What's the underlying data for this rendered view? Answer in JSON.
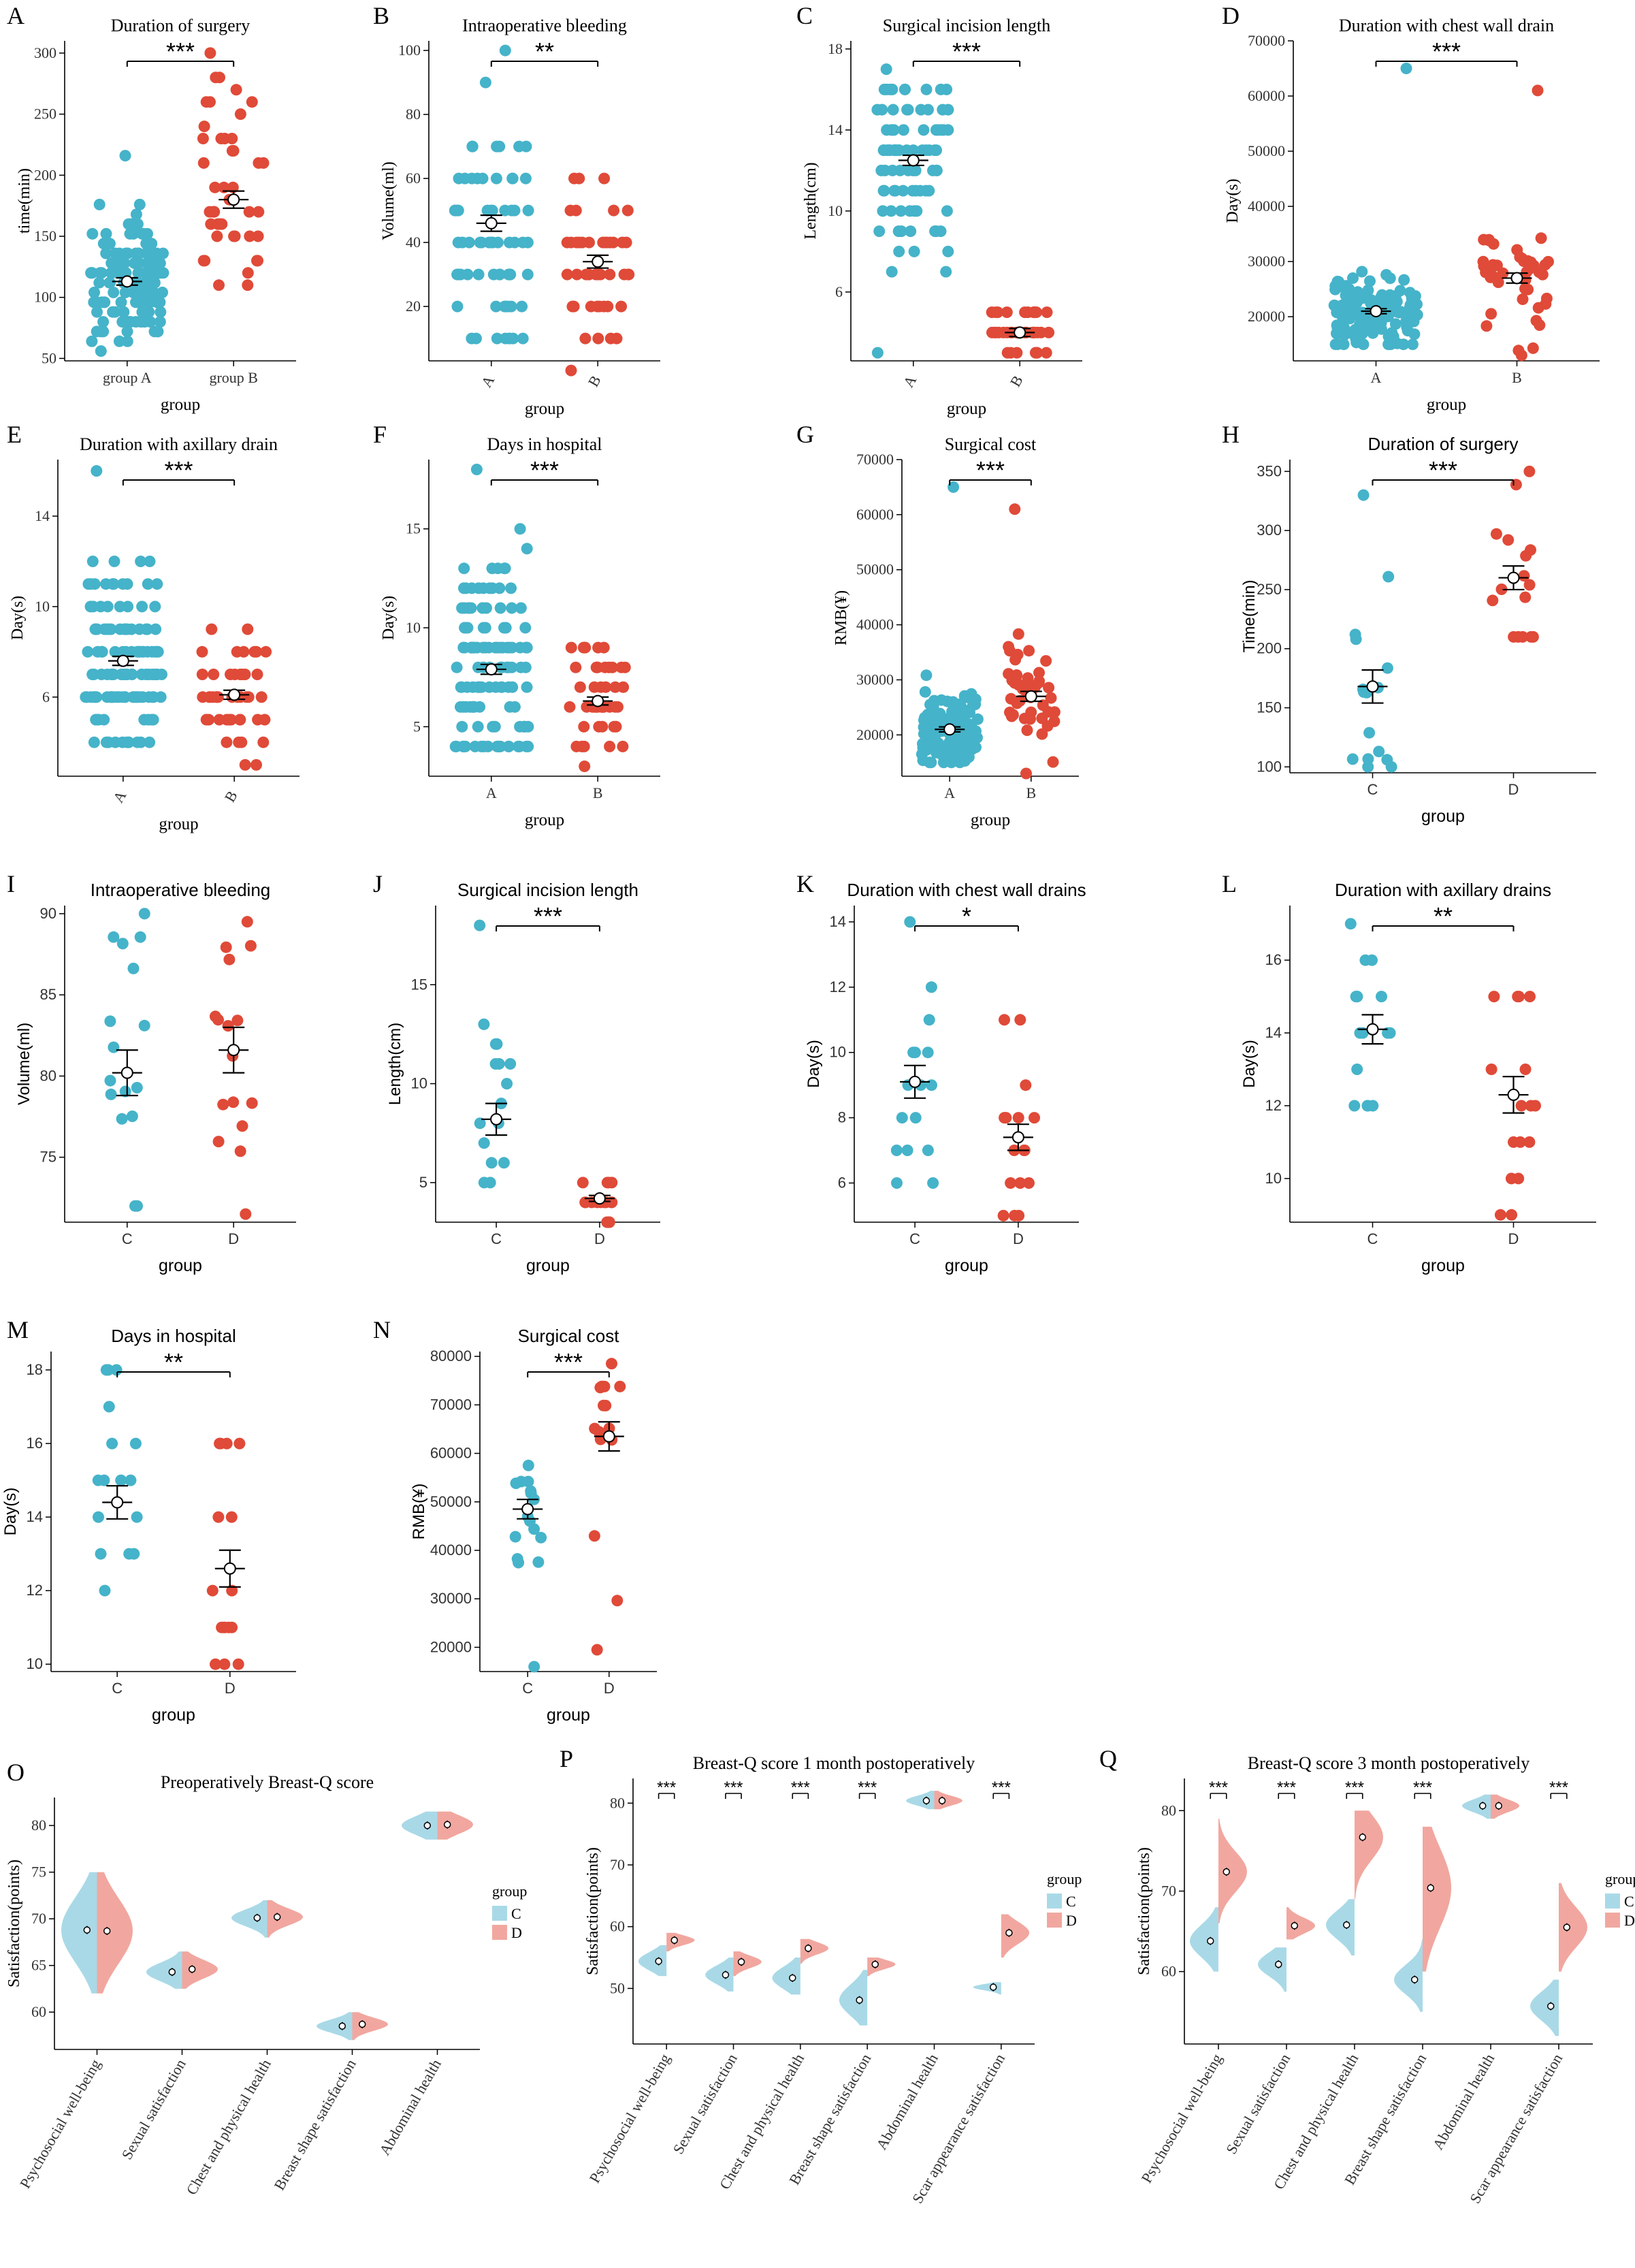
{
  "colors": {
    "a": "#45B3C9",
    "b": "#E04A38",
    "violinC": "#A9D9E7",
    "violinD": "#F1A79F"
  },
  "chart_data": [
    {
      "id": "A",
      "label": "A",
      "type": "scatter",
      "style": "serif",
      "title": "Duration of surgery",
      "xlabel": "group",
      "ylabel": "time(min)",
      "ylim": [
        48,
        310
      ],
      "yticks": [
        50,
        100,
        150,
        200,
        250,
        300
      ],
      "categories": [
        "group A",
        "group B"
      ],
      "rotate": false,
      "groups": [
        {
          "n": 130,
          "mean": 113,
          "sd": 30,
          "min": 52,
          "max": 215,
          "se": 3,
          "clump": 8
        },
        {
          "n": 45,
          "mean": 180,
          "sd": 45,
          "min": 110,
          "max": 300,
          "se": 7,
          "clump": 10
        }
      ],
      "sig": "***"
    },
    {
      "id": "B",
      "label": "B",
      "type": "scatter",
      "style": "serif",
      "title": "Intraoperative bleeding",
      "xlabel": "group",
      "ylabel": "Volume(ml)",
      "ylim": [
        3,
        103
      ],
      "yticks": [
        20,
        40,
        60,
        80,
        100
      ],
      "categories": [
        "A",
        "B"
      ],
      "rotate": true,
      "groups": [
        {
          "n": 70,
          "mean": 46,
          "sd": 20,
          "min": 12,
          "max": 100,
          "se": 2.5,
          "clump": 10
        },
        {
          "n": 45,
          "mean": 34,
          "sd": 14,
          "min": 4,
          "max": 60,
          "se": 2,
          "clump": 10
        }
      ],
      "sig": "**"
    },
    {
      "id": "C",
      "label": "C",
      "type": "scatter",
      "style": "serif",
      "title": "Surgical incision length",
      "xlabel": "group",
      "ylabel": "Length(cm)",
      "ylim": [
        2.6,
        18.4
      ],
      "yticks": [
        6,
        10,
        14,
        18
      ],
      "categories": [
        "A",
        "B"
      ],
      "rotate": true,
      "groups": [
        {
          "n": 90,
          "mean": 12.5,
          "sd": 2.6,
          "min": 3,
          "max": 17,
          "se": 0.25,
          "clump": 1
        },
        {
          "n": 40,
          "mean": 4.0,
          "sd": 0.6,
          "min": 3,
          "max": 5,
          "se": 0.2,
          "clump": 1
        }
      ],
      "sig": "***"
    },
    {
      "id": "D",
      "label": "D",
      "type": "scatter",
      "style": "serif",
      "title": "Duration with chest wall drain",
      "xlabel": "group",
      "ylabel": "Day(s)",
      "ylim": [
        12000,
        70000
      ],
      "yticks": [
        20000,
        30000,
        40000,
        50000,
        60000,
        70000
      ],
      "categories": [
        "A",
        "B"
      ],
      "rotate": false,
      "groups": [
        {
          "n": 130,
          "mean": 21000,
          "sd": 3500,
          "min": 15000,
          "max": 65000,
          "se": 450,
          "clump": 0
        },
        {
          "n": 45,
          "mean": 27000,
          "sd": 5000,
          "min": 13000,
          "max": 61000,
          "se": 900,
          "clump": 0
        }
      ],
      "sig": "***"
    },
    {
      "id": "E",
      "label": "E",
      "type": "scatter",
      "style": "serif",
      "title": "Duration with axillary drain",
      "xlabel": "group",
      "ylabel": "Day(s)",
      "ylim": [
        2.5,
        16.5
      ],
      "yticks": [
        6,
        10,
        14
      ],
      "categories": [
        "A",
        "B"
      ],
      "rotate": true,
      "groups": [
        {
          "n": 130,
          "mean": 7.6,
          "sd": 2.5,
          "min": 4,
          "max": 16,
          "se": 0.2,
          "clump": 1
        },
        {
          "n": 45,
          "mean": 6.1,
          "sd": 1.3,
          "min": 3,
          "max": 9,
          "se": 0.2,
          "clump": 1
        }
      ],
      "sig": "***"
    },
    {
      "id": "F",
      "label": "F",
      "type": "scatter",
      "style": "serif",
      "title": "Days in hospital",
      "xlabel": "group",
      "ylabel": "Day(s)",
      "ylim": [
        2.5,
        18.5
      ],
      "yticks": [
        5,
        10,
        15
      ],
      "categories": [
        "A",
        "B"
      ],
      "rotate": false,
      "groups": [
        {
          "n": 130,
          "mean": 7.9,
          "sd": 2.8,
          "min": 4,
          "max": 18,
          "se": 0.25,
          "clump": 1
        },
        {
          "n": 45,
          "mean": 6.3,
          "sd": 1.4,
          "min": 3,
          "max": 9,
          "se": 0.2,
          "clump": 1
        }
      ],
      "sig": "***"
    },
    {
      "id": "G",
      "label": "G",
      "type": "scatter",
      "style": "serif",
      "title": "Surgical cost",
      "xlabel": "group",
      "ylabel": "RMB(¥)",
      "ylim": [
        12500,
        70000
      ],
      "yticks": [
        20000,
        30000,
        40000,
        50000,
        60000,
        70000
      ],
      "categories": [
        "A",
        "B"
      ],
      "rotate": false,
      "groups": [
        {
          "n": 130,
          "mean": 21000,
          "sd": 3500,
          "min": 15000,
          "max": 65000,
          "se": 450,
          "clump": 0
        },
        {
          "n": 45,
          "mean": 27000,
          "sd": 5000,
          "min": 13000,
          "max": 61000,
          "se": 900,
          "clump": 0
        }
      ],
      "sig": "***"
    },
    {
      "id": "H",
      "label": "H",
      "type": "scatter",
      "style": "sans",
      "title": "Duration of surgery",
      "xlabel": "group",
      "ylabel": "Time(min)",
      "ylim": [
        95,
        360
      ],
      "yticks": [
        100,
        150,
        200,
        250,
        300,
        350
      ],
      "categories": [
        "C",
        "D"
      ],
      "rotate": false,
      "groups": [
        {
          "n": 16,
          "mean": 168,
          "sd": 55,
          "min": 100,
          "max": 330,
          "se": 14,
          "clump": 0
        },
        {
          "n": 16,
          "mean": 260,
          "sd": 40,
          "min": 210,
          "max": 350,
          "se": 10,
          "clump": 0
        }
      ],
      "sig": "***"
    },
    {
      "id": "I",
      "label": "I",
      "type": "scatter",
      "style": "sans",
      "title": "Intraoperative bleeding",
      "xlabel": "group",
      "ylabel": "Volume(ml)",
      "ylim": [
        71,
        90.5
      ],
      "yticks": [
        75,
        80,
        85,
        90
      ],
      "categories": [
        "C",
        "D"
      ],
      "rotate": false,
      "groups": [
        {
          "n": 16,
          "mean": 80.2,
          "sd": 5.5,
          "min": 72,
          "max": 90,
          "se": 1.4,
          "clump": 0
        },
        {
          "n": 16,
          "mean": 81.6,
          "sd": 5.5,
          "min": 71.5,
          "max": 89.5,
          "se": 1.4,
          "clump": 0
        }
      ],
      "sig": ""
    },
    {
      "id": "J",
      "label": "J",
      "type": "scatter",
      "style": "sans",
      "title": "Surgical incision length",
      "xlabel": "group",
      "ylabel": "Length(cm)",
      "ylim": [
        3,
        19
      ],
      "yticks": [
        5,
        10,
        15
      ],
      "categories": [
        "C",
        "D"
      ],
      "rotate": false,
      "groups": [
        {
          "n": 16,
          "mean": 8.2,
          "sd": 3.3,
          "min": 5,
          "max": 18,
          "se": 0.8,
          "clump": 1
        },
        {
          "n": 16,
          "mean": 4.2,
          "sd": 0.6,
          "min": 3,
          "max": 5,
          "se": 0.15,
          "clump": 1
        }
      ],
      "sig": "***"
    },
    {
      "id": "K",
      "label": "K",
      "type": "scatter",
      "style": "sans",
      "title": "Duration with chest wall  drains",
      "xlabel": "group",
      "ylabel": "Day(s)",
      "ylim": [
        4.8,
        14.5
      ],
      "yticks": [
        6,
        8,
        10,
        12,
        14
      ],
      "categories": [
        "C",
        "D"
      ],
      "rotate": false,
      "groups": [
        {
          "n": 16,
          "mean": 9.1,
          "sd": 2,
          "min": 6,
          "max": 14,
          "se": 0.5,
          "clump": 1
        },
        {
          "n": 16,
          "mean": 7.4,
          "sd": 1.6,
          "min": 5,
          "max": 11,
          "se": 0.4,
          "clump": 1
        }
      ],
      "sig": "*"
    },
    {
      "id": "L",
      "label": "L",
      "type": "scatter",
      "style": "sans",
      "title": "Duration with axillary drains",
      "xlabel": "group",
      "ylabel": "Day(s)",
      "ylim": [
        8.8,
        17.5
      ],
      "yticks": [
        10,
        12,
        14,
        16
      ],
      "categories": [
        "C",
        "D"
      ],
      "rotate": false,
      "groups": [
        {
          "n": 16,
          "mean": 14.1,
          "sd": 1.5,
          "min": 12,
          "max": 17,
          "se": 0.4,
          "clump": 1
        },
        {
          "n": 16,
          "mean": 12.3,
          "sd": 2.1,
          "min": 9,
          "max": 15,
          "se": 0.5,
          "clump": 1
        }
      ],
      "sig": "**"
    },
    {
      "id": "M",
      "label": "M",
      "type": "scatter",
      "style": "sans",
      "title": "Days in hospital",
      "xlabel": "group",
      "ylabel": "Day(s)",
      "ylim": [
        9.8,
        18.5
      ],
      "yticks": [
        10,
        12,
        14,
        16,
        18
      ],
      "categories": [
        "C",
        "D"
      ],
      "rotate": false,
      "groups": [
        {
          "n": 16,
          "mean": 14.4,
          "sd": 1.8,
          "min": 12,
          "max": 18,
          "se": 0.45,
          "clump": 1
        },
        {
          "n": 16,
          "mean": 12.6,
          "sd": 2,
          "min": 10,
          "max": 16,
          "se": 0.5,
          "clump": 1
        }
      ],
      "sig": "**"
    },
    {
      "id": "N",
      "label": "N",
      "type": "scatter",
      "style": "sans",
      "title": "Surgical cost",
      "xlabel": "group",
      "ylabel": "RMB(¥)",
      "ylim": [
        15000,
        81000
      ],
      "yticks": [
        20000,
        30000,
        40000,
        50000,
        60000,
        70000,
        80000
      ],
      "categories": [
        "C",
        "D"
      ],
      "rotate": false,
      "groups": [
        {
          "n": 16,
          "mean": 48500,
          "sd": 8000,
          "min": 16000,
          "max": 57500,
          "se": 2000,
          "clump": 0
        },
        {
          "n": 16,
          "mean": 63500,
          "sd": 13000,
          "min": 19500,
          "max": 78500,
          "se": 3000,
          "clump": 0
        }
      ],
      "sig": "***"
    },
    {
      "id": "O",
      "label": "O",
      "type": "violin",
      "title": "Preoperatively Breast-Q score",
      "xlabel": "",
      "ylabel": "Satisfaction(points)",
      "ylim": [
        56,
        83
      ],
      "yticks": [
        60,
        65,
        70,
        75,
        80
      ],
      "legend_title": "group",
      "legend": [
        "C",
        "D"
      ],
      "categories": [
        "Psychosocial well-being",
        "Sexual satisfaction",
        "Chest and physical health",
        "Breast shape satisfaction",
        "Abdominal health"
      ],
      "series": [
        {
          "name": "C",
          "means": [
            68.8,
            64.3,
            70.1,
            58.5,
            80.0
          ],
          "spread": [
            3.5,
            1.0,
            0.9,
            0.7,
            1.0
          ],
          "range": [
            [
              62,
              75
            ],
            [
              62.5,
              66.5
            ],
            [
              68,
              72
            ],
            [
              57,
              60
            ],
            [
              78.5,
              81.5
            ]
          ]
        },
        {
          "name": "D",
          "means": [
            68.7,
            64.6,
            70.2,
            58.7,
            80.1
          ],
          "spread": [
            3.5,
            1.0,
            0.9,
            0.7,
            1.0
          ],
          "range": [
            [
              62,
              75
            ],
            [
              62.5,
              66.5
            ],
            [
              68,
              72
            ],
            [
              57,
              60
            ],
            [
              78.5,
              81.5
            ]
          ]
        }
      ],
      "sig": [
        "",
        "",
        "",
        "",
        ""
      ]
    },
    {
      "id": "P",
      "label": "P",
      "type": "violin",
      "title": "Breast-Q score 1 month postoperatively",
      "xlabel": "",
      "ylabel": "Satisfaction(points)",
      "ylim": [
        41,
        84
      ],
      "yticks": [
        50,
        60,
        70,
        80
      ],
      "legend_title": "group",
      "legend": [
        "C",
        "D"
      ],
      "categories": [
        "Psychosocial well-being",
        "Sexual satisfaction",
        "Chest and physical health",
        "Breast shape satisfaction",
        "Abdominal health",
        "Scar appearance satisfaction"
      ],
      "series": [
        {
          "name": "C",
          "means": [
            54.4,
            52.2,
            51.7,
            48.1,
            80.4,
            50.2
          ],
          "spread": [
            1.5,
            1.5,
            1.8,
            2.5,
            0.8,
            0.5
          ],
          "range": [
            [
              52,
              57
            ],
            [
              49.5,
              55
            ],
            [
              49,
              55
            ],
            [
              44,
              53
            ],
            [
              79,
              82
            ],
            [
              49,
              51
            ]
          ]
        },
        {
          "name": "D",
          "means": [
            57.8,
            54.3,
            56.5,
            53.9,
            80.4,
            59.0
          ],
          "spread": [
            0.8,
            1.0,
            1.0,
            0.8,
            0.8,
            1.8
          ],
          "range": [
            [
              56,
              59
            ],
            [
              52,
              56
            ],
            [
              54,
              58
            ],
            [
              52,
              55
            ],
            [
              79,
              82
            ],
            [
              55,
              62
            ]
          ]
        }
      ],
      "sig": [
        "***",
        "***",
        "***",
        "***",
        "",
        "***"
      ]
    },
    {
      "id": "Q",
      "label": "Q",
      "type": "violin",
      "title": "Breast-Q score 3 month postoperatively",
      "xlabel": "",
      "ylabel": "Satisfaction(points)",
      "ylim": [
        51,
        84
      ],
      "yticks": [
        60,
        70,
        80
      ],
      "legend_title": "group",
      "legend": [
        "C",
        "D"
      ],
      "categories": [
        "Psychosocial well-being",
        "Sexual satisfaction",
        "Chest and physical health",
        "Breast shape satisfaction",
        "Abdominal health",
        "Scar appearance satisfaction"
      ],
      "series": [
        {
          "name": "C",
          "means": [
            63.8,
            60.9,
            65.8,
            59.0,
            80.6,
            55.7
          ],
          "spread": [
            2.0,
            1.5,
            1.8,
            1.8,
            0.8,
            1.8
          ],
          "range": [
            [
              60,
              68
            ],
            [
              57.5,
              63
            ],
            [
              62,
              69
            ],
            [
              55,
              64
            ],
            [
              79,
              82
            ],
            [
              52,
              59
            ]
          ]
        },
        {
          "name": "D",
          "means": [
            72.4,
            65.7,
            76.7,
            70.4,
            80.6,
            65.5
          ],
          "spread": [
            2.5,
            1.0,
            2.8,
            5.0,
            0.8,
            2.5
          ],
          "range": [
            [
              66,
              79
            ],
            [
              64,
              68
            ],
            [
              69,
              80
            ],
            [
              60,
              78
            ],
            [
              79,
              82
            ],
            [
              60,
              71
            ]
          ]
        }
      ],
      "sig": [
        "***",
        "***",
        "***",
        "***",
        "",
        "***"
      ]
    }
  ]
}
